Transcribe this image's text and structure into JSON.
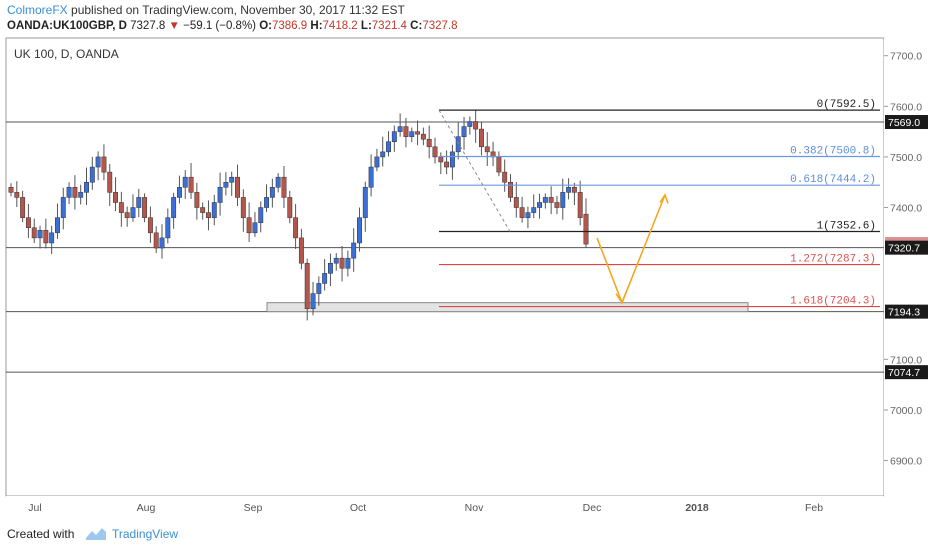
{
  "header": {
    "author": "ColmoreFX",
    "published_text": "published on TradingView.com, November 30, 2017 11:32 EST",
    "symbol": "OANDA:UK100GBP, D",
    "last": "7327.8",
    "change": "−59.1 (−0.8%)",
    "open_label": "O:",
    "open": "7386.9",
    "high_label": "H:",
    "high": "7418.2",
    "low_label": "L:",
    "low": "7321.4",
    "close_label": "C:",
    "close": "7327.8"
  },
  "chart": {
    "legend": "UK 100, D, OANDA",
    "y_ticks": [
      "7700.0",
      "7600.0",
      "7500.0",
      "7400.0",
      "7100.0",
      "7000.0",
      "6900.0"
    ],
    "x_ticks": [
      "Jul",
      "Aug",
      "Sep",
      "Oct",
      "Nov",
      "Dec",
      "2018",
      "Feb"
    ],
    "price_tags": [
      {
        "text": "7569.0",
        "dark": true
      },
      {
        "text": "7327.8",
        "dark": false,
        "color": "#d9908f"
      },
      {
        "text": "7320.7",
        "dark": true
      },
      {
        "text": "7194.3",
        "dark": true
      },
      {
        "text": "7074.7",
        "dark": true
      }
    ],
    "fib_labels": [
      {
        "text": "0(7592.5)",
        "color": "#222222"
      },
      {
        "text": "0.382(7500.8)",
        "color": "#5b8fd9"
      },
      {
        "text": "0.618(7444.2)",
        "color": "#5b8fd9"
      },
      {
        "text": "1(7352.6)",
        "color": "#222222"
      },
      {
        "text": "1.272(7287.3)",
        "color": "#e05050"
      },
      {
        "text": "1.618(7204.3)",
        "color": "#e05050"
      }
    ],
    "colors": {
      "up": "#3a6fd8",
      "down": "#b5564c",
      "grid": "#eeeeee",
      "fib_blue": "#6a98e0",
      "fib_red": "#e04444",
      "arrow": "#f5a623"
    }
  },
  "chart_data": {
    "type": "candlestick",
    "symbol": "OANDA:UK100GBP",
    "timeframe": "D",
    "ylim": [
      6830,
      7735
    ],
    "horizontal_levels": [
      7569.0,
      7320.7,
      7194.3,
      7074.7
    ],
    "fibonacci": [
      {
        "ratio": 0,
        "price": 7592.5
      },
      {
        "ratio": 0.382,
        "price": 7500.8
      },
      {
        "ratio": 0.618,
        "price": 7444.2
      },
      {
        "ratio": 1,
        "price": 7352.6
      },
      {
        "ratio": 1.272,
        "price": 7287.3
      },
      {
        "ratio": 1.618,
        "price": 7204.3
      }
    ],
    "support_zone": [
      7194.3,
      7212
    ],
    "close_path": [
      7430,
      7420,
      7380,
      7360,
      7340,
      7355,
      7330,
      7350,
      7380,
      7420,
      7440,
      7420,
      7430,
      7450,
      7480,
      7500,
      7470,
      7430,
      7410,
      7390,
      7380,
      7400,
      7420,
      7380,
      7350,
      7320,
      7340,
      7380,
      7420,
      7440,
      7460,
      7430,
      7400,
      7390,
      7380,
      7410,
      7440,
      7450,
      7460,
      7420,
      7380,
      7350,
      7370,
      7400,
      7420,
      7440,
      7460,
      7420,
      7380,
      7340,
      7290,
      7200,
      7230,
      7250,
      7270,
      7290,
      7300,
      7280,
      7300,
      7330,
      7380,
      7440,
      7480,
      7500,
      7510,
      7530,
      7550,
      7560,
      7540,
      7550,
      7545,
      7535,
      7520,
      7500,
      7490,
      7480,
      7510,
      7540,
      7560,
      7570,
      7555,
      7520,
      7510,
      7500,
      7470,
      7450,
      7420,
      7400,
      7380,
      7390,
      7400,
      7410,
      7420,
      7410,
      7400,
      7430,
      7440,
      7430,
      7380,
      7327.8
    ]
  }
}
